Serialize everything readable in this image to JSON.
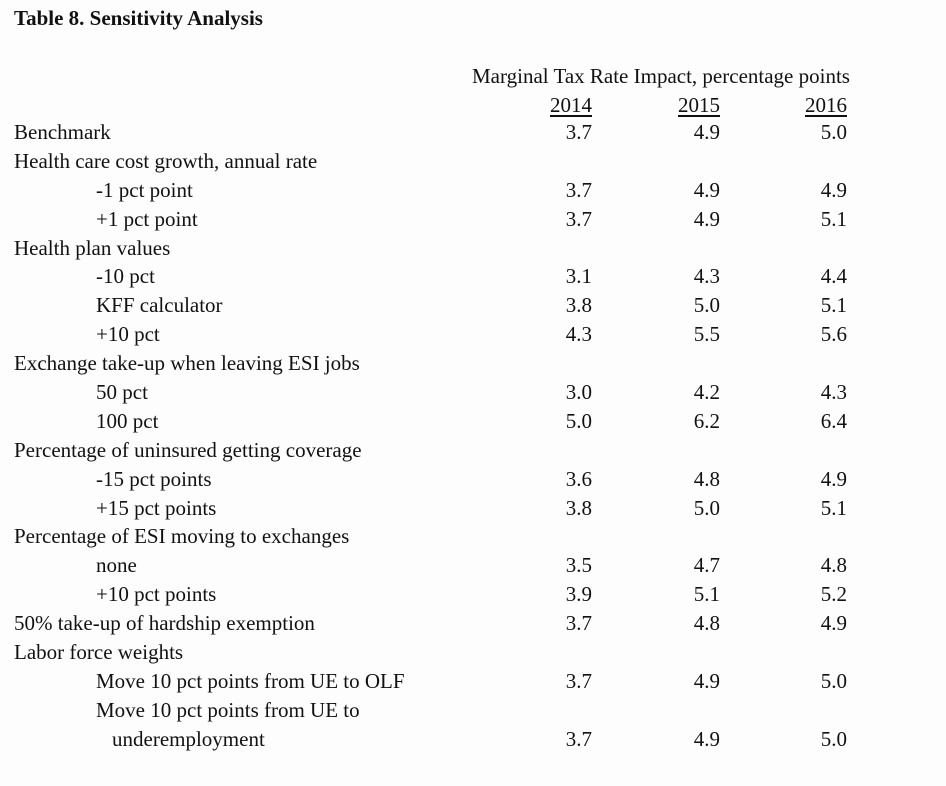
{
  "table": {
    "title": "Table 8.  Sensitivity Analysis",
    "column_group_heading": "Marginal Tax Rate Impact, percentage points",
    "years": [
      "2014",
      "2015",
      "2016"
    ],
    "rows": [
      {
        "label": "Benchmark",
        "indent": 0,
        "values": [
          "3.7",
          "4.9",
          "5.0"
        ]
      },
      {
        "label": "Health care cost growth, annual rate",
        "indent": 0,
        "values": []
      },
      {
        "label": "-1 pct point",
        "indent": 1,
        "values": [
          "3.7",
          "4.9",
          "4.9"
        ]
      },
      {
        "label": "+1 pct point",
        "indent": 1,
        "values": [
          "3.7",
          "4.9",
          "5.1"
        ]
      },
      {
        "label": "Health plan values",
        "indent": 0,
        "values": []
      },
      {
        "label": "-10 pct",
        "indent": 1,
        "values": [
          "3.1",
          "4.3",
          "4.4"
        ]
      },
      {
        "label": "KFF calculator",
        "indent": 1,
        "values": [
          "3.8",
          "5.0",
          "5.1"
        ]
      },
      {
        "label": "+10 pct",
        "indent": 1,
        "values": [
          "4.3",
          "5.5",
          "5.6"
        ]
      },
      {
        "label": "Exchange take-up when leaving ESI jobs",
        "indent": 0,
        "values": []
      },
      {
        "label": "50 pct",
        "indent": 1,
        "values": [
          "3.0",
          "4.2",
          "4.3"
        ]
      },
      {
        "label": "100 pct",
        "indent": 1,
        "values": [
          "5.0",
          "6.2",
          "6.4"
        ]
      },
      {
        "label": "Percentage of uninsured getting coverage",
        "indent": 0,
        "values": []
      },
      {
        "label": "-15 pct points",
        "indent": 1,
        "values": [
          "3.6",
          "4.8",
          "4.9"
        ]
      },
      {
        "label": "+15 pct points",
        "indent": 1,
        "values": [
          "3.8",
          "5.0",
          "5.1"
        ]
      },
      {
        "label": "Percentage of ESI moving to exchanges",
        "indent": 0,
        "values": []
      },
      {
        "label": "none",
        "indent": 1,
        "values": [
          "3.5",
          "4.7",
          "4.8"
        ]
      },
      {
        "label": "+10 pct points",
        "indent": 1,
        "values": [
          "3.9",
          "5.1",
          "5.2"
        ]
      },
      {
        "label": "50% take-up of hardship exemption",
        "indent": 0,
        "values": [
          "3.7",
          "4.8",
          "4.9"
        ]
      },
      {
        "label": "Labor force weights",
        "indent": 0,
        "values": []
      },
      {
        "label": "Move 10 pct points from UE to OLF",
        "indent": 2,
        "values": [
          "3.7",
          "4.9",
          "5.0"
        ]
      },
      {
        "label": "Move 10 pct points from UE to",
        "indent": 2,
        "values": []
      },
      {
        "label": "underemployment",
        "indent": 3,
        "values": [
          "3.7",
          "4.9",
          "5.0"
        ]
      }
    ]
  }
}
